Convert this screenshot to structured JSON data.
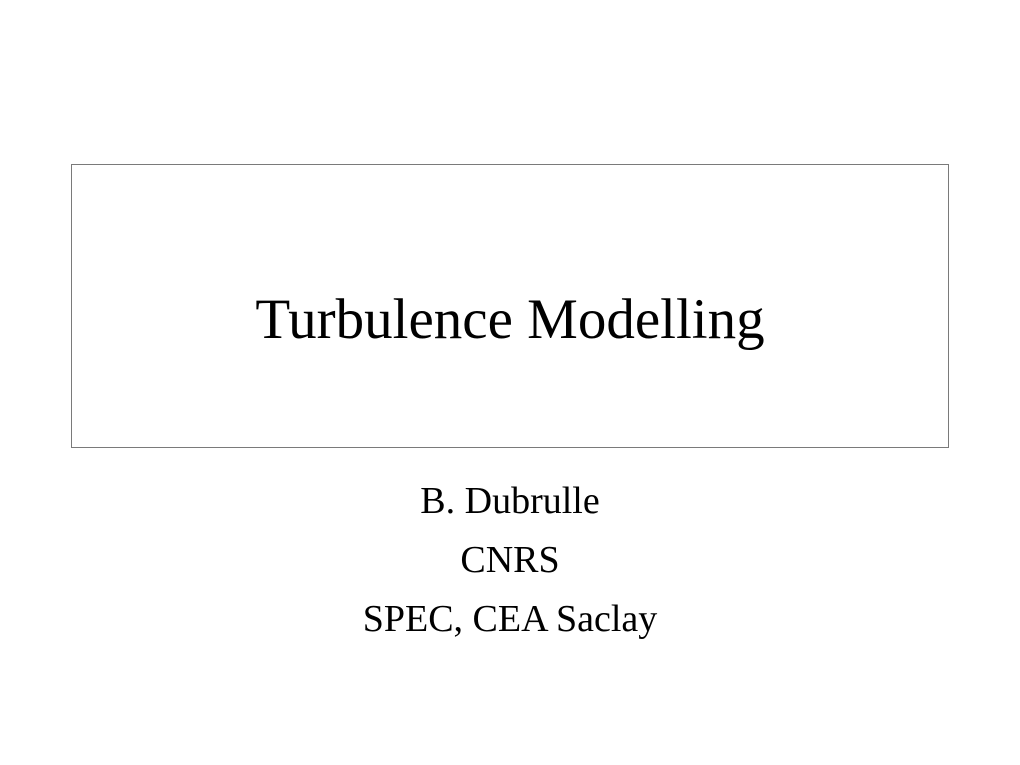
{
  "slide": {
    "title": "Turbulence Modelling",
    "author": "B. Dubrulle",
    "affiliation1": "CNRS",
    "affiliation2": "SPEC, CEA Saclay"
  },
  "style": {
    "background_color": "#ffffff",
    "text_color": "#000000",
    "border_color": "#7a7a7a",
    "title_fontsize": 57,
    "body_fontsize": 38,
    "font_family": "Times New Roman"
  }
}
